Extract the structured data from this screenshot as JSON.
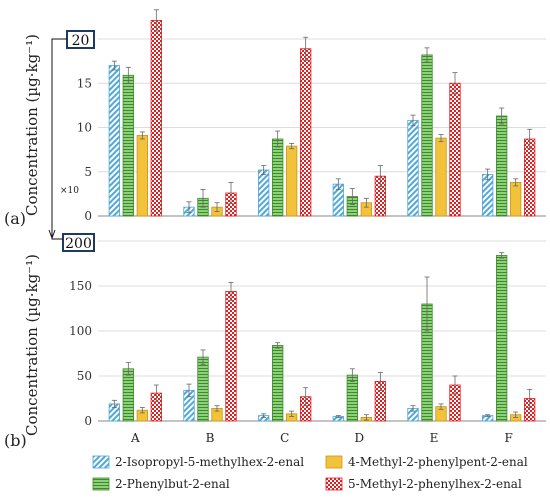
{
  "chart_data": [
    {
      "type": "bar",
      "panel_label": "(a)",
      "ylabel": "Concentration (µg·kg⁻¹)",
      "ylim": [
        0,
        20
      ],
      "yticks": [
        0,
        5,
        10,
        15
      ],
      "ymax_box_label": "20",
      "scale_note": "×10",
      "grid": true,
      "categories": [
        "A",
        "B",
        "C",
        "D",
        "E",
        "F"
      ],
      "series": [
        {
          "name": "2-Isopropyl-5-methylhex-2-enal",
          "values": [
            17.0,
            1.0,
            5.2,
            3.6,
            10.8,
            4.7
          ],
          "errors": [
            0.5,
            0.6,
            0.5,
            0.6,
            0.6,
            0.6
          ]
        },
        {
          "name": "2-Phenylbut-2-enal",
          "values": [
            15.9,
            2.0,
            8.7,
            2.2,
            18.2,
            11.3
          ],
          "errors": [
            0.9,
            1.0,
            0.9,
            0.9,
            0.8,
            0.9
          ]
        },
        {
          "name": "4-Methyl-2-phenylpent-2-enal",
          "values": [
            9.1,
            1.0,
            7.9,
            1.5,
            8.8,
            3.8
          ],
          "errors": [
            0.4,
            0.5,
            0.3,
            0.5,
            0.4,
            0.4
          ]
        },
        {
          "name": "5-Methyl-2-phenylhex-2-enal",
          "values": [
            22.1,
            2.6,
            18.9,
            4.5,
            15.0,
            8.7
          ],
          "errors": [
            1.2,
            1.2,
            1.3,
            1.2,
            1.2,
            1.1
          ]
        }
      ]
    },
    {
      "type": "bar",
      "panel_label": "(b)",
      "ylabel": "Concentration (µg·kg⁻¹)",
      "ylim": [
        0,
        200
      ],
      "yticks": [
        0,
        50,
        100,
        150
      ],
      "ymax_box_label": "200",
      "grid": true,
      "categories": [
        "A",
        "B",
        "C",
        "D",
        "E",
        "F"
      ],
      "series": [
        {
          "name": "2-Isopropyl-5-methylhex-2-enal",
          "values": [
            19,
            34,
            6,
            5,
            14,
            6
          ],
          "errors": [
            4,
            7,
            2,
            1,
            3,
            1
          ]
        },
        {
          "name": "2-Phenylbut-2-enal",
          "values": [
            58,
            71,
            84,
            51,
            130,
            184
          ],
          "errors": [
            7,
            8,
            3,
            7,
            30,
            3
          ]
        },
        {
          "name": "4-Methyl-2-phenylpent-2-enal",
          "values": [
            12,
            14,
            8,
            4,
            16,
            7
          ],
          "errors": [
            3,
            3,
            3,
            3,
            3,
            3
          ]
        },
        {
          "name": "5-Methyl-2-phenylhex-2-enal",
          "values": [
            31,
            144,
            27,
            44,
            40,
            25
          ],
          "errors": [
            9,
            10,
            10,
            10,
            10,
            10
          ]
        }
      ]
    }
  ],
  "legend": {
    "placement": "bottom",
    "entries": [
      {
        "label": "2-Isopropyl-5-methylhex-2-enal",
        "pattern": "diag-blue"
      },
      {
        "label": "4-Methyl-2-phenylpent-2-enal",
        "pattern": "solid-yellow"
      },
      {
        "label": "2-Phenylbut-2-enal",
        "pattern": "hline-green"
      },
      {
        "label": "5-Methyl-2-phenylhex-2-enal",
        "pattern": "check-red"
      }
    ]
  },
  "colors": {
    "isopropyl": "#4fa8d8",
    "phenylbut": "#8fd17a",
    "methylpent": "#f2c23a",
    "methylhex": "#e02020",
    "grid": "#dcdcdc",
    "axis": "#888888"
  }
}
